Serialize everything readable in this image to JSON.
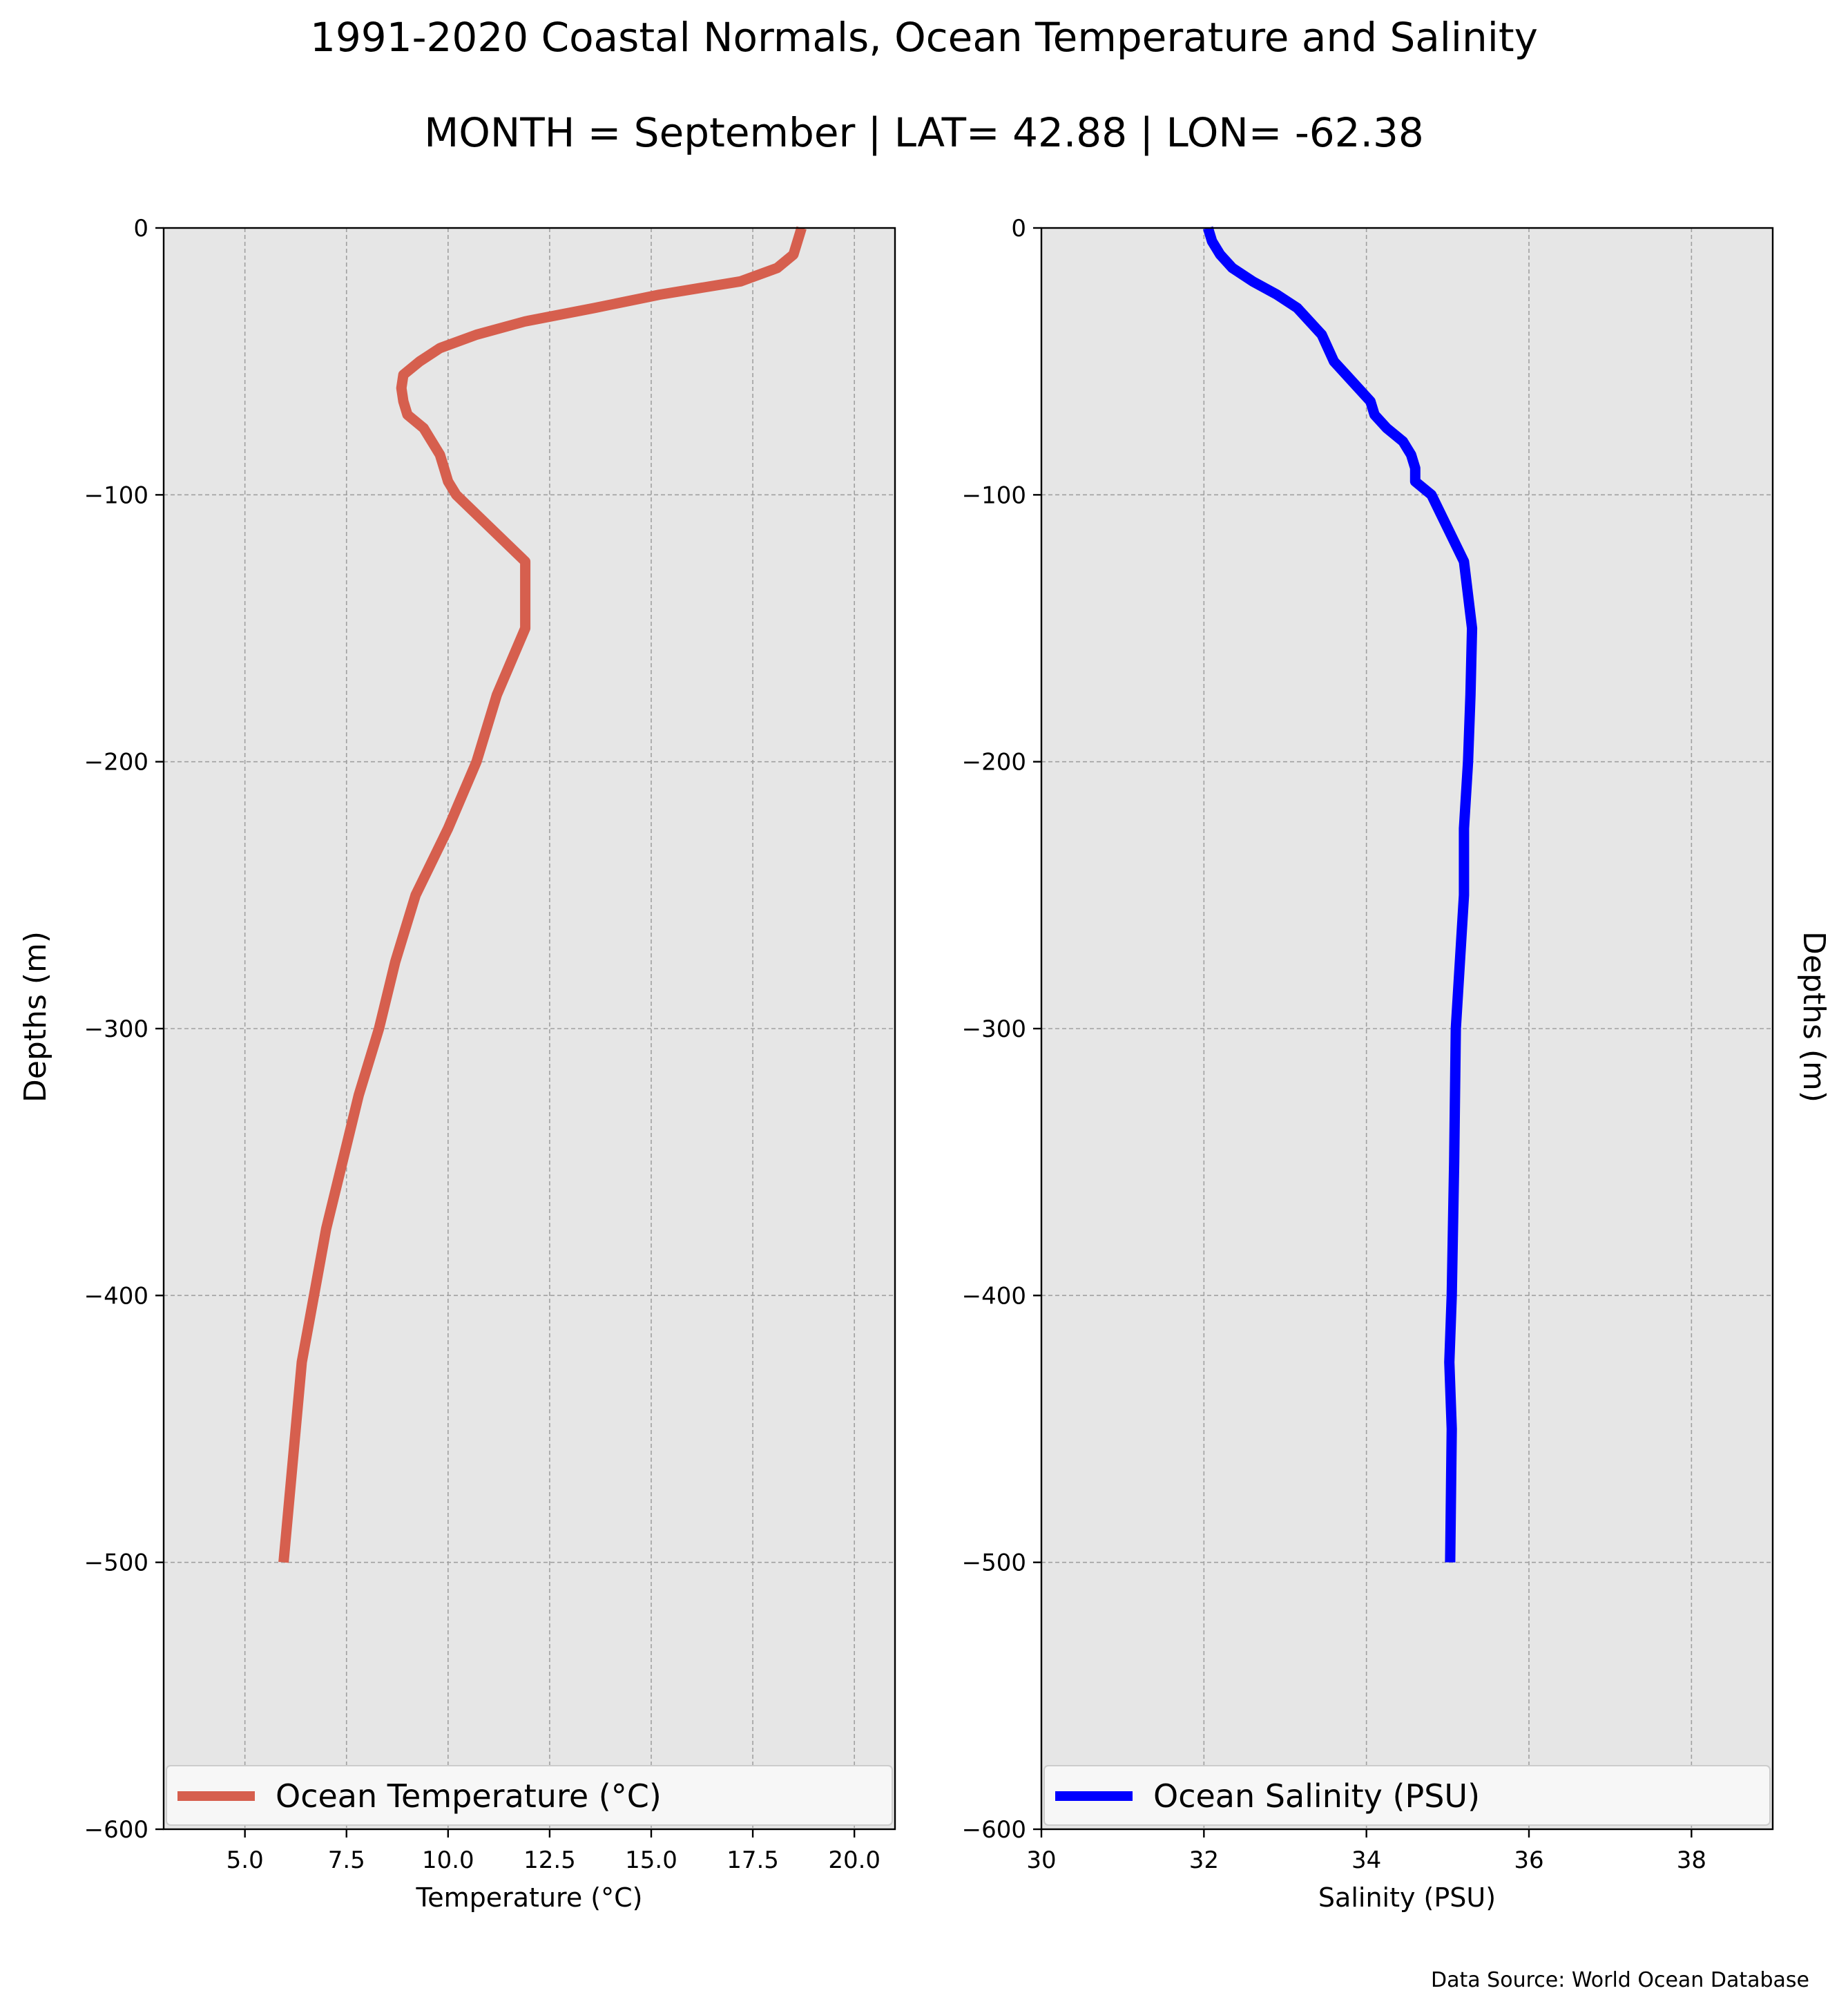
{
  "title": "1991-2020 Coastal Normals, Ocean Temperature and Salinity",
  "subtitle": "MONTH = September | LAT= 42.88 | LON= -62.38",
  "source": "Data Source: World Ocean Database",
  "colors": {
    "background": "#e6e6e6",
    "temperature": "#d65f4e",
    "salinity": "#0000ff",
    "grid": "#a0a0a0"
  },
  "chart_data": [
    {
      "type": "line",
      "xlabel": "Temperature ($^\\circ$C)",
      "xlabel_display": "Temperature (°C)",
      "ylabel": "Depths (m)",
      "xlim": [
        3.0,
        21.0
      ],
      "ylim": [
        -600,
        0
      ],
      "xticks": [
        5.0,
        7.5,
        10.0,
        12.5,
        15.0,
        17.5,
        20.0
      ],
      "xtick_labels": [
        "5.0",
        "7.5",
        "10.0",
        "12.5",
        "15.0",
        "17.5",
        "20.0"
      ],
      "yticks": [
        0,
        -100,
        -200,
        -300,
        -400,
        -500,
        -600
      ],
      "ytick_labels": [
        "0",
        "−100",
        "−200",
        "−300",
        "−400",
        "−500",
        "−600"
      ],
      "grid": true,
      "legend_position": "bottom",
      "series": [
        {
          "name": "Ocean Temperature (°C)",
          "color": "#d65f4e",
          "points": [
            [
              18.7,
              0
            ],
            [
              18.6,
              -5
            ],
            [
              18.5,
              -10
            ],
            [
              18.1,
              -15
            ],
            [
              17.2,
              -20
            ],
            [
              15.2,
              -25
            ],
            [
              13.6,
              -30
            ],
            [
              11.9,
              -35
            ],
            [
              10.7,
              -40
            ],
            [
              9.8,
              -45
            ],
            [
              9.3,
              -50
            ],
            [
              8.9,
              -55
            ],
            [
              8.85,
              -60
            ],
            [
              8.9,
              -65
            ],
            [
              9.0,
              -70
            ],
            [
              9.4,
              -75
            ],
            [
              9.6,
              -80
            ],
            [
              9.8,
              -85
            ],
            [
              9.9,
              -90
            ],
            [
              10.0,
              -95
            ],
            [
              10.2,
              -100
            ],
            [
              11.9,
              -125
            ],
            [
              11.9,
              -150
            ],
            [
              11.2,
              -175
            ],
            [
              10.7,
              -200
            ],
            [
              10.0,
              -225
            ],
            [
              9.2,
              -250
            ],
            [
              8.7,
              -275
            ],
            [
              8.3,
              -300
            ],
            [
              7.8,
              -325
            ],
            [
              7.4,
              -350
            ],
            [
              7.0,
              -375
            ],
            [
              6.7,
              -400
            ],
            [
              6.4,
              -425
            ],
            [
              6.25,
              -450
            ],
            [
              6.1,
              -475
            ],
            [
              5.95,
              -500
            ]
          ]
        }
      ]
    },
    {
      "type": "line",
      "xlabel": "Salinity (PSU)",
      "ylabel": "Depths (m)",
      "xlim": [
        30,
        39
      ],
      "ylim": [
        -600,
        0
      ],
      "xticks": [
        30,
        32,
        34,
        36,
        38
      ],
      "xtick_labels": [
        "30",
        "32",
        "34",
        "36",
        "38"
      ],
      "yticks": [
        0,
        -100,
        -200,
        -300,
        -400,
        -500,
        -600
      ],
      "ytick_labels": [
        "0",
        "−100",
        "−200",
        "−300",
        "−400",
        "−500",
        "−600"
      ],
      "grid": true,
      "legend_position": "bottom",
      "series": [
        {
          "name": "Ocean Salinity (PSU)",
          "color": "#0000ff",
          "points": [
            [
              32.05,
              0
            ],
            [
              32.1,
              -5
            ],
            [
              32.2,
              -10
            ],
            [
              32.35,
              -15
            ],
            [
              32.6,
              -20
            ],
            [
              32.9,
              -25
            ],
            [
              33.15,
              -30
            ],
            [
              33.3,
              -35
            ],
            [
              33.45,
              -40
            ],
            [
              33.6,
              -50
            ],
            [
              33.75,
              -55
            ],
            [
              34.05,
              -65
            ],
            [
              34.1,
              -70
            ],
            [
              34.25,
              -75
            ],
            [
              34.45,
              -80
            ],
            [
              34.55,
              -85
            ],
            [
              34.6,
              -90
            ],
            [
              34.6,
              -95
            ],
            [
              34.8,
              -100
            ],
            [
              35.2,
              -125
            ],
            [
              35.3,
              -150
            ],
            [
              35.28,
              -175
            ],
            [
              35.25,
              -200
            ],
            [
              35.2,
              -225
            ],
            [
              35.2,
              -250
            ],
            [
              35.15,
              -275
            ],
            [
              35.1,
              -300
            ],
            [
              35.08,
              -350
            ],
            [
              35.05,
              -400
            ],
            [
              35.02,
              -425
            ],
            [
              35.05,
              -450
            ],
            [
              35.03,
              -500
            ]
          ]
        }
      ]
    }
  ]
}
